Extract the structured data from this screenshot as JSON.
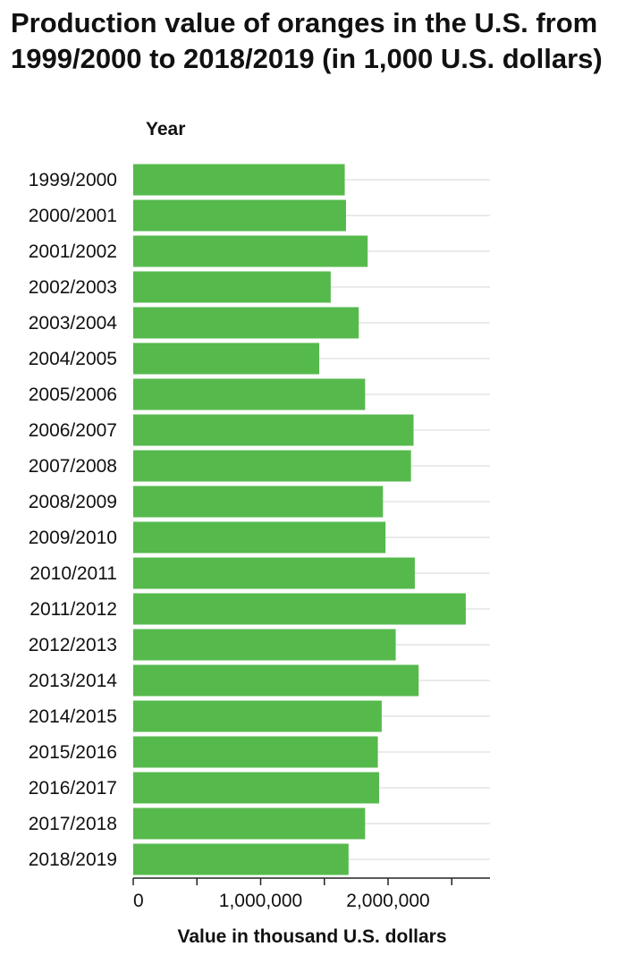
{
  "chart_data": {
    "type": "bar",
    "orientation": "horizontal",
    "title": "Production value of oranges in the U.S. from 1999/2000 to 2018/2019 (in 1,000 U.S. dollars)",
    "ylabel": "Year",
    "xlabel": "Value in thousand U.S. dollars",
    "categories": [
      "1999/2000",
      "2000/2001",
      "2001/2002",
      "2002/2003",
      "2003/2004",
      "2004/2005",
      "2005/2006",
      "2006/2007",
      "2007/2008",
      "2008/2009",
      "2009/2010",
      "2010/2011",
      "2011/2012",
      "2012/2013",
      "2013/2014",
      "2014/2015",
      "2015/2016",
      "2016/2017",
      "2017/2018",
      "2018/2019"
    ],
    "values": [
      1660000,
      1670000,
      1840000,
      1550000,
      1770000,
      1460000,
      1820000,
      2200000,
      2180000,
      1960000,
      1980000,
      2210000,
      2610000,
      2060000,
      2240000,
      1950000,
      1920000,
      1930000,
      1820000,
      1690000
    ],
    "xlim": [
      0,
      2800000
    ],
    "xticks": [
      0,
      500000,
      1000000,
      1500000,
      2000000,
      2500000
    ],
    "xtick_labels": [
      "0",
      "",
      "1,000,000",
      "",
      "2,000,000",
      ""
    ],
    "bar_color": "#56b94c",
    "grid": true
  }
}
